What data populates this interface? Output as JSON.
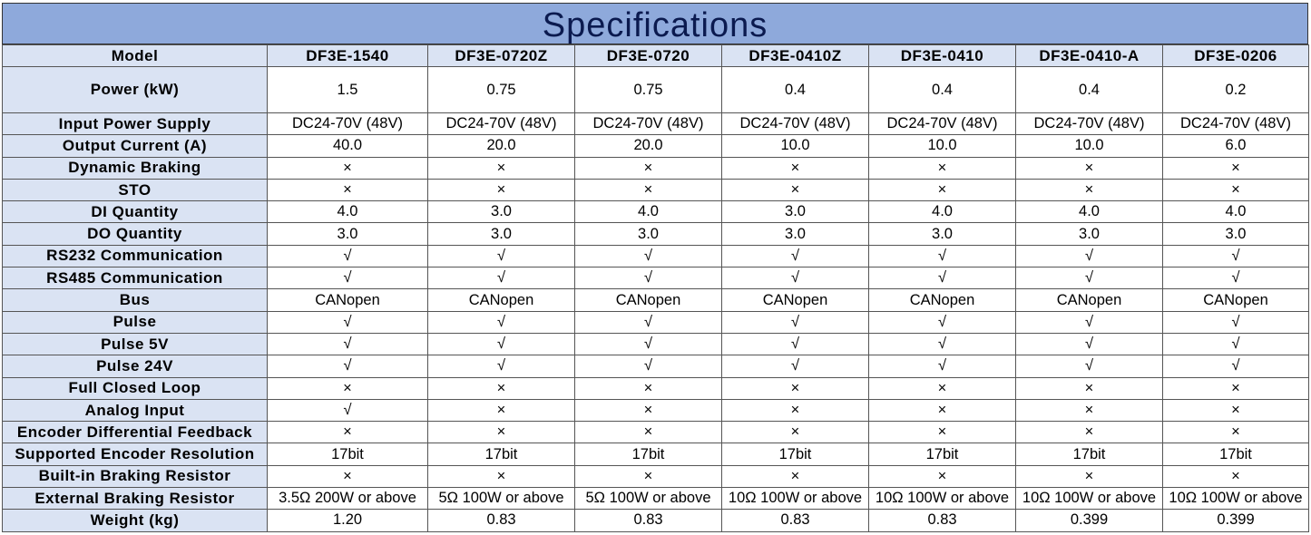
{
  "title": "Specifications",
  "table": {
    "header": [
      "Model",
      "DF3E-1540",
      "DF3E-0720Z",
      "DF3E-0720",
      "DF3E-0410Z",
      "DF3E-0410",
      "DF3E-0410-A",
      "DF3E-0206"
    ],
    "rows": [
      [
        "Power (kW)",
        "1.5",
        "0.75",
        "0.75",
        "0.4",
        "0.4",
        "0.4",
        "0.2"
      ],
      [
        "Input Power Supply",
        "DC24-70V (48V)",
        "DC24-70V (48V)",
        "DC24-70V (48V)",
        "DC24-70V (48V)",
        "DC24-70V (48V)",
        "DC24-70V (48V)",
        "DC24-70V (48V)"
      ],
      [
        "Output Current (A)",
        "40.0",
        "20.0",
        "20.0",
        "10.0",
        "10.0",
        "10.0",
        "6.0"
      ],
      [
        "Dynamic Braking",
        "×",
        "×",
        "×",
        "×",
        "×",
        "×",
        "×"
      ],
      [
        "STO",
        "×",
        "×",
        "×",
        "×",
        "×",
        "×",
        "×"
      ],
      [
        "DI Quantity",
        "4.0",
        "3.0",
        "4.0",
        "3.0",
        "4.0",
        "4.0",
        "4.0"
      ],
      [
        "DO Quantity",
        "3.0",
        "3.0",
        "3.0",
        "3.0",
        "3.0",
        "3.0",
        "3.0"
      ],
      [
        "RS232 Communication",
        "√",
        "√",
        "√",
        "√",
        "√",
        "√",
        "√"
      ],
      [
        "RS485 Communication",
        "√",
        "√",
        "√",
        "√",
        "√",
        "√",
        "√"
      ],
      [
        "Bus",
        "CANopen",
        "CANopen",
        "CANopen",
        "CANopen",
        "CANopen",
        "CANopen",
        "CANopen"
      ],
      [
        "Pulse",
        "√",
        "√",
        "√",
        "√",
        "√",
        "√",
        "√"
      ],
      [
        "Pulse 5V",
        "√",
        "√",
        "√",
        "√",
        "√",
        "√",
        "√"
      ],
      [
        "Pulse 24V",
        "√",
        "√",
        "√",
        "√",
        "√",
        "√",
        "√"
      ],
      [
        "Full Closed Loop",
        "×",
        "×",
        "×",
        "×",
        "×",
        "×",
        "×"
      ],
      [
        "Analog Input",
        "√",
        "×",
        "×",
        "×",
        "×",
        "×",
        "×"
      ],
      [
        "Encoder Differential Feedback",
        "×",
        "×",
        "×",
        "×",
        "×",
        "×",
        "×"
      ],
      [
        "Supported Encoder Resolution",
        "17bit",
        "17bit",
        "17bit",
        "17bit",
        "17bit",
        "17bit",
        "17bit"
      ],
      [
        "Built-in Braking Resistor",
        "×",
        "×",
        "×",
        "×",
        "×",
        "×",
        "×"
      ],
      [
        "External Braking Resistor",
        "3.5Ω 200W or above",
        "5Ω 100W or above",
        "5Ω 100W or above",
        "10Ω 100W or above",
        "10Ω 100W or above",
        "10Ω 100W or above",
        "10Ω 100W or above"
      ],
      [
        "Weight (kg)",
        "1.20",
        "0.83",
        "0.83",
        "0.83",
        "0.83",
        "0.399",
        "0.399"
      ]
    ]
  }
}
